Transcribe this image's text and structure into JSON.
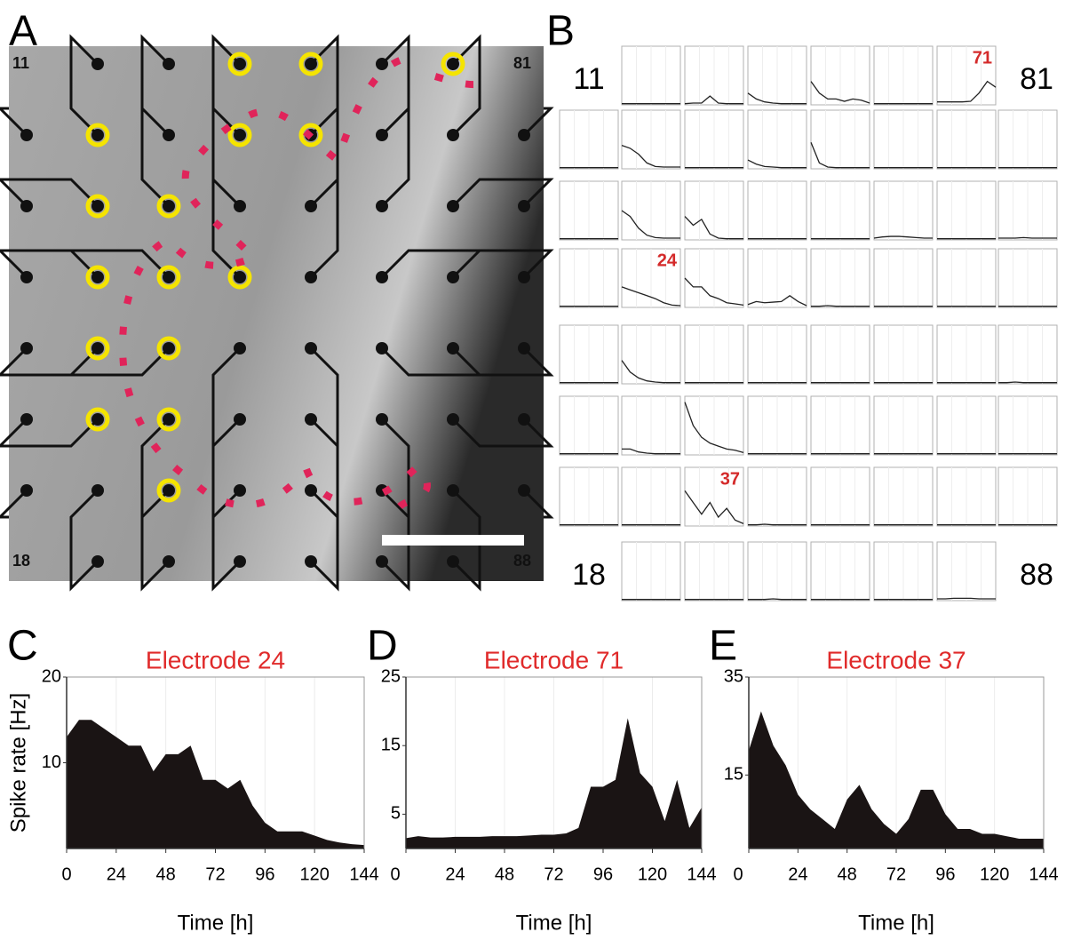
{
  "panel_a": {
    "letter": "A",
    "corner_labels": [
      "11",
      "81",
      "18",
      "88"
    ]
  },
  "panel_b": {
    "letter": "B",
    "rows": [
      [
        {
          "label": "11"
        },
        {
          "values": [
            0.2,
            0.2,
            0.2,
            0.2,
            0.2,
            0.2,
            0.2,
            0.2
          ]
        },
        {
          "values": [
            0.2,
            0.3,
            0.3,
            1.5,
            0.3,
            0.2,
            0.2,
            0.2
          ]
        },
        {
          "values": [
            2,
            1,
            0.5,
            0.3,
            0.2,
            0.2,
            0.2,
            0.2
          ]
        },
        {
          "values": [
            4,
            2,
            1,
            1,
            0.6,
            1,
            0.8,
            0.3
          ]
        },
        {
          "values": [
            0.2,
            0.2,
            0.2,
            0.2,
            0.2,
            0.2,
            0.2,
            0.2
          ]
        },
        {
          "label": "71",
          "values": [
            0.5,
            0.5,
            0.5,
            0.5,
            0.6,
            2,
            4,
            3
          ]
        },
        {
          "label": "81"
        }
      ],
      [
        {
          "values": [
            0.2,
            0.2,
            0.2,
            0.2,
            0.2,
            0.2,
            0.2,
            0.2
          ]
        },
        {
          "values": [
            4,
            3.5,
            2.5,
            1,
            0.4,
            0.3,
            0.3,
            0.3
          ]
        },
        {
          "values": [
            0.2,
            0.2,
            0.2,
            0.2,
            0.2,
            0.2,
            0.2,
            0.2
          ]
        },
        {
          "values": [
            1.5,
            0.8,
            0.4,
            0.3,
            0.2,
            0.2,
            0.2,
            0.2
          ]
        },
        {
          "values": [
            4.5,
            1,
            0.3,
            0.2,
            0.2,
            0.2,
            0.2,
            0.2
          ]
        },
        {
          "values": [
            0.2,
            0.2,
            0.2,
            0.2,
            0.2,
            0.2,
            0.2,
            0.2
          ]
        },
        {
          "values": [
            0.2,
            0.2,
            0.2,
            0.2,
            0.2,
            0.2,
            0.2,
            0.2
          ]
        },
        {
          "values": [
            0.2,
            0.2,
            0.2,
            0.2,
            0.2,
            0.2,
            0.2,
            0.2
          ]
        }
      ],
      [
        {
          "values": [
            0.2,
            0.2,
            0.2,
            0.2,
            0.2,
            0.2,
            0.2,
            0.2
          ]
        },
        {
          "values": [
            5,
            4,
            2,
            0.8,
            0.4,
            0.3,
            0.3,
            0.3
          ]
        },
        {
          "values": [
            4,
            2.5,
            3.5,
            1,
            0.3,
            0.2,
            0.2,
            0.2
          ]
        },
        {
          "values": [
            0.2,
            0.2,
            0.2,
            0.2,
            0.2,
            0.2,
            0.2,
            0.2
          ]
        },
        {
          "values": [
            0.2,
            0.2,
            0.2,
            0.2,
            0.2,
            0.2,
            0.2,
            0.2
          ]
        },
        {
          "values": [
            0.3,
            0.5,
            0.6,
            0.6,
            0.5,
            0.4,
            0.3,
            0.3
          ]
        },
        {
          "values": [
            0.2,
            0.2,
            0.2,
            0.2,
            0.2,
            0.2,
            0.2,
            0.2
          ]
        },
        {
          "values": [
            0.3,
            0.3,
            0.3,
            0.4,
            0.3,
            0.3,
            0.3,
            0.3
          ]
        }
      ],
      [
        {
          "values": [
            0.2,
            0.2,
            0.2,
            0.2,
            0.2,
            0.2,
            0.2,
            0.2
          ]
        },
        {
          "label": "24",
          "values": [
            3.5,
            3,
            2.5,
            2,
            1.5,
            0.8,
            0.4,
            0.3
          ]
        },
        {
          "values": [
            5,
            3.5,
            3.5,
            2,
            1.5,
            0.8,
            0.6,
            0.4
          ]
        },
        {
          "values": [
            0.5,
            1,
            0.8,
            0.9,
            1,
            2,
            1,
            0.3
          ]
        },
        {
          "values": [
            0.2,
            0.2,
            0.3,
            0.2,
            0.2,
            0.2,
            0.2,
            0.2
          ]
        },
        {
          "values": [
            0.2,
            0.2,
            0.2,
            0.2,
            0.2,
            0.2,
            0.2,
            0.2
          ]
        },
        {
          "values": [
            0.2,
            0.2,
            0.2,
            0.2,
            0.2,
            0.2,
            0.2,
            0.2
          ]
        },
        {
          "values": [
            0.2,
            0.2,
            0.2,
            0.2,
            0.2,
            0.2,
            0.2,
            0.2
          ]
        }
      ],
      [
        {
          "values": [
            0.2,
            0.2,
            0.2,
            0.2,
            0.2,
            0.2,
            0.2,
            0.2
          ]
        },
        {
          "values": [
            4,
            2,
            1,
            0.5,
            0.3,
            0.2,
            0.2,
            0.2
          ]
        },
        {
          "values": [
            0.2,
            0.2,
            0.2,
            0.2,
            0.2,
            0.2,
            0.2,
            0.2
          ]
        },
        {
          "values": [
            0.2,
            0.2,
            0.2,
            0.2,
            0.2,
            0.2,
            0.2,
            0.2
          ]
        },
        {
          "values": [
            0.2,
            0.2,
            0.2,
            0.2,
            0.2,
            0.2,
            0.2,
            0.2
          ]
        },
        {
          "values": [
            0.2,
            0.2,
            0.2,
            0.2,
            0.2,
            0.2,
            0.2,
            0.2
          ]
        },
        {
          "values": [
            0.2,
            0.2,
            0.2,
            0.2,
            0.2,
            0.2,
            0.2,
            0.2
          ]
        },
        {
          "values": [
            0.2,
            0.2,
            0.3,
            0.2,
            0.2,
            0.2,
            0.2,
            0.2
          ]
        }
      ],
      [
        {
          "values": [
            0.2,
            0.2,
            0.2,
            0.2,
            0.2,
            0.2,
            0.2,
            0.2
          ]
        },
        {
          "values": [
            1,
            1,
            0.5,
            0.3,
            0.2,
            0.2,
            0.2,
            0.2
          ]
        },
        {
          "values": [
            9,
            5,
            3,
            2,
            1.5,
            1,
            0.8,
            0.4
          ]
        },
        {
          "values": [
            0.2,
            0.2,
            0.2,
            0.2,
            0.2,
            0.2,
            0.2,
            0.2
          ]
        },
        {
          "values": [
            0.2,
            0.2,
            0.2,
            0.2,
            0.2,
            0.2,
            0.2,
            0.2
          ]
        },
        {
          "values": [
            0.2,
            0.2,
            0.2,
            0.2,
            0.2,
            0.2,
            0.2,
            0.2
          ]
        },
        {
          "values": [
            0.2,
            0.2,
            0.2,
            0.2,
            0.2,
            0.2,
            0.2,
            0.2
          ]
        },
        {
          "values": [
            0.2,
            0.2,
            0.2,
            0.2,
            0.2,
            0.2,
            0.2,
            0.2
          ]
        }
      ],
      [
        {
          "values": [
            0.2,
            0.2,
            0.2,
            0.2,
            0.2,
            0.2,
            0.2,
            0.2
          ]
        },
        {
          "values": [
            0.2,
            0.2,
            0.2,
            0.2,
            0.2,
            0.2,
            0.2,
            0.2
          ]
        },
        {
          "label": "37",
          "values": [
            6,
            4,
            2,
            4,
            1.5,
            3,
            1,
            0.4
          ]
        },
        {
          "values": [
            0.2,
            0.2,
            0.3,
            0.2,
            0.2,
            0.2,
            0.2,
            0.2
          ]
        },
        {
          "values": [
            0.2,
            0.2,
            0.2,
            0.2,
            0.2,
            0.2,
            0.2,
            0.2
          ]
        },
        {
          "values": [
            0.2,
            0.2,
            0.2,
            0.2,
            0.2,
            0.2,
            0.2,
            0.2
          ]
        },
        {
          "values": [
            0.2,
            0.2,
            0.2,
            0.2,
            0.2,
            0.2,
            0.2,
            0.2
          ]
        },
        {
          "values": [
            0.2,
            0.2,
            0.2,
            0.2,
            0.2,
            0.2,
            0.2,
            0.2
          ]
        }
      ],
      [
        {
          "label": "18"
        },
        {
          "values": [
            0.2,
            0.2,
            0.2,
            0.2,
            0.2,
            0.2,
            0.2,
            0.2
          ]
        },
        {
          "values": [
            0.2,
            0.2,
            0.2,
            0.2,
            0.2,
            0.2,
            0.2,
            0.2
          ]
        },
        {
          "values": [
            0.2,
            0.2,
            0.2,
            0.3,
            0.2,
            0.2,
            0.2,
            0.2
          ]
        },
        {
          "values": [
            0.2,
            0.2,
            0.2,
            0.2,
            0.2,
            0.2,
            0.2,
            0.2
          ]
        },
        {
          "values": [
            0.2,
            0.2,
            0.2,
            0.2,
            0.2,
            0.2,
            0.2,
            0.2
          ]
        },
        {
          "values": [
            0.3,
            0.3,
            0.4,
            0.4,
            0.4,
            0.3,
            0.3,
            0.3
          ]
        },
        {
          "label": "88"
        }
      ]
    ]
  },
  "chart_data": [
    {
      "type": "area",
      "letter": "C",
      "title": "Electrode 24",
      "ylabel": "Spike rate [Hz]",
      "xlabel": "Time [h]",
      "color": "#1a1414",
      "x": [
        0,
        6,
        12,
        18,
        24,
        30,
        36,
        42,
        48,
        54,
        60,
        66,
        72,
        78,
        84,
        90,
        96,
        102,
        108,
        114,
        120,
        126,
        132,
        138,
        144
      ],
      "values": [
        13,
        15,
        15,
        14,
        13,
        12,
        12,
        9,
        11,
        11,
        12,
        8,
        8,
        7,
        8,
        5,
        3,
        2,
        2,
        2,
        1.5,
        1,
        0.7,
        0.5,
        0.4
      ],
      "xlim": [
        0,
        144
      ],
      "ylim": [
        0,
        20
      ],
      "xticks": [
        0,
        24,
        48,
        72,
        96,
        120,
        144
      ],
      "yticks": [
        10,
        20
      ]
    },
    {
      "type": "area",
      "letter": "D",
      "title": "Electrode 71",
      "xlabel": "Time [h]",
      "color": "#1a1414",
      "x": [
        0,
        6,
        12,
        18,
        24,
        30,
        36,
        42,
        48,
        54,
        60,
        66,
        72,
        78,
        84,
        90,
        96,
        102,
        108,
        114,
        120,
        126,
        132,
        138,
        144
      ],
      "values": [
        1.5,
        1.8,
        1.6,
        1.6,
        1.7,
        1.7,
        1.7,
        1.8,
        1.8,
        1.8,
        1.9,
        2,
        2,
        2.2,
        3,
        9,
        9,
        10,
        19,
        11,
        9,
        4,
        10,
        3,
        6
      ],
      "xlim": [
        0,
        144
      ],
      "ylim": [
        0,
        25
      ],
      "xticks": [
        0,
        24,
        48,
        72,
        96,
        120,
        144
      ],
      "yticks": [
        5,
        15,
        25
      ]
    },
    {
      "type": "area",
      "letter": "E",
      "title": "Electrode 37",
      "xlabel": "Time [h]",
      "color": "#1a1414",
      "x": [
        0,
        6,
        12,
        18,
        24,
        30,
        36,
        42,
        48,
        54,
        60,
        66,
        72,
        78,
        84,
        90,
        96,
        102,
        108,
        114,
        120,
        126,
        132,
        138,
        144
      ],
      "values": [
        20,
        28,
        21,
        17,
        11,
        8,
        6,
        4,
        10,
        13,
        8,
        5,
        3,
        6,
        12,
        12,
        7,
        4,
        4,
        3,
        3,
        2.5,
        2,
        2,
        2
      ],
      "xlim": [
        0,
        144
      ],
      "ylim": [
        0,
        35
      ],
      "xticks": [
        0,
        24,
        48,
        72,
        96,
        120,
        144
      ],
      "yticks": [
        15,
        35
      ]
    }
  ]
}
